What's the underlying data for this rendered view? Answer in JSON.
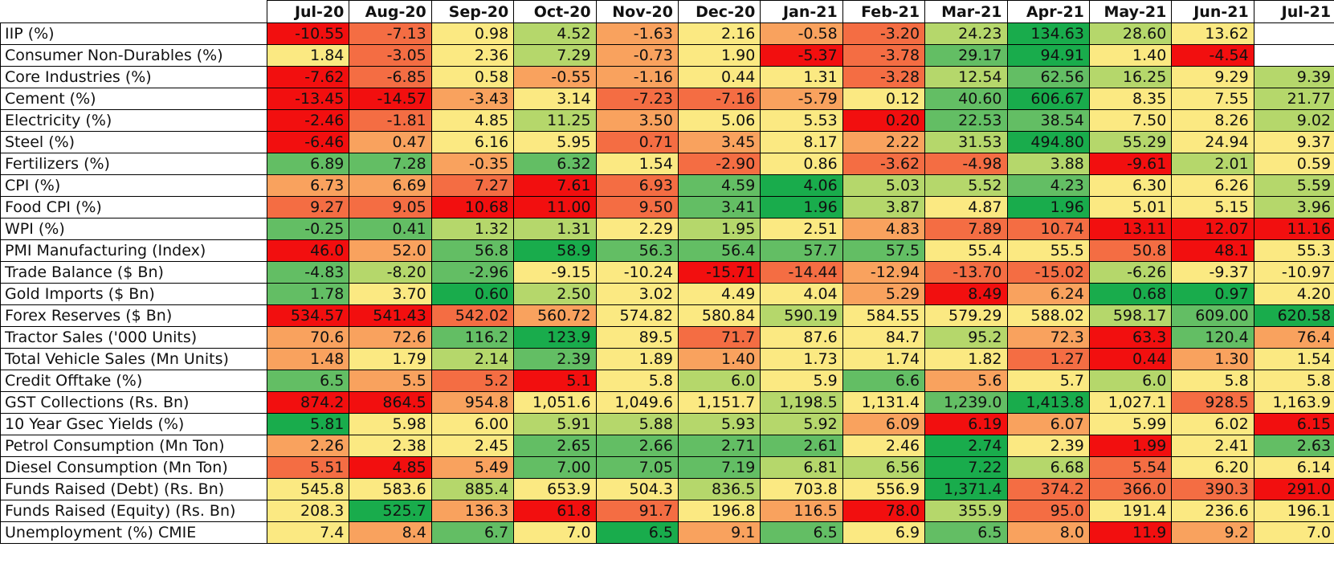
{
  "colors": {
    "dark_green": "#19ac4c",
    "green": "#63be64",
    "light_green": "#b5d76b",
    "yellow": "#fbe982",
    "orange": "#f9a25e",
    "red_orange": "#f46d43",
    "red": "#f20f0f"
  },
  "columns": [
    "Jul-20",
    "Aug-20",
    "Sep-20",
    "Oct-20",
    "Nov-20",
    "Dec-20",
    "Jan-21",
    "Feb-21",
    "Mar-21",
    "Apr-21",
    "May-21",
    "Jun-21",
    "Jul-21"
  ],
  "rows": [
    {
      "label": "IIP (%)",
      "values": [
        "-10.55",
        "-7.13",
        "0.98",
        "4.52",
        "-1.63",
        "2.16",
        "-0.58",
        "-3.20",
        "24.23",
        "134.63",
        "28.60",
        "13.62",
        ""
      ],
      "colors": [
        "red",
        "red_orange",
        "yellow",
        "light_green",
        "orange",
        "yellow",
        "orange",
        "red_orange",
        "light_green",
        "dark_green",
        "light_green",
        "yellow",
        "none"
      ]
    },
    {
      "label": "Consumer Non-Durables (%)",
      "values": [
        "1.84",
        "-3.05",
        "2.36",
        "7.29",
        "-0.73",
        "1.90",
        "-5.37",
        "-3.78",
        "29.17",
        "94.91",
        "1.40",
        "-4.54",
        ""
      ],
      "colors": [
        "yellow",
        "red_orange",
        "yellow",
        "light_green",
        "orange",
        "yellow",
        "red",
        "red_orange",
        "green",
        "dark_green",
        "yellow",
        "red",
        "none"
      ]
    },
    {
      "label": "Core Industries (%)",
      "values": [
        "-7.62",
        "-6.85",
        "0.58",
        "-0.55",
        "-1.16",
        "0.44",
        "1.31",
        "-3.28",
        "12.54",
        "62.56",
        "16.25",
        "9.29",
        "9.39"
      ],
      "colors": [
        "red",
        "red_orange",
        "yellow",
        "orange",
        "orange",
        "yellow",
        "yellow",
        "red_orange",
        "light_green",
        "green",
        "light_green",
        "yellow",
        "light_green"
      ]
    },
    {
      "label": "Cement (%)",
      "values": [
        "-13.45",
        "-14.57",
        "-3.43",
        "3.14",
        "-7.23",
        "-7.16",
        "-5.79",
        "0.12",
        "40.60",
        "606.67",
        "8.35",
        "7.55",
        "21.77"
      ],
      "colors": [
        "red",
        "red",
        "orange",
        "yellow",
        "red_orange",
        "red_orange",
        "orange",
        "yellow",
        "green",
        "dark_green",
        "yellow",
        "yellow",
        "light_green"
      ]
    },
    {
      "label": "Electricity (%)",
      "values": [
        "-2.46",
        "-1.81",
        "4.85",
        "11.25",
        "3.50",
        "5.06",
        "5.53",
        "0.20",
        "22.53",
        "38.54",
        "7.50",
        "8.26",
        "9.02"
      ],
      "colors": [
        "red",
        "red_orange",
        "yellow",
        "light_green",
        "orange",
        "yellow",
        "yellow",
        "red",
        "green",
        "green",
        "yellow",
        "yellow",
        "light_green"
      ]
    },
    {
      "label": "Steel (%)",
      "values": [
        "-6.46",
        "0.47",
        "6.16",
        "5.95",
        "0.71",
        "3.45",
        "8.17",
        "2.22",
        "31.53",
        "494.80",
        "55.29",
        "24.94",
        "9.37"
      ],
      "colors": [
        "red",
        "orange",
        "yellow",
        "yellow",
        "red_orange",
        "orange",
        "yellow",
        "orange",
        "light_green",
        "dark_green",
        "light_green",
        "yellow",
        "yellow"
      ]
    },
    {
      "label": "Fertilizers (%)",
      "values": [
        "6.89",
        "7.28",
        "-0.35",
        "6.32",
        "1.54",
        "-2.90",
        "0.86",
        "-3.62",
        "-4.98",
        "3.88",
        "-9.61",
        "2.01",
        "0.59"
      ],
      "colors": [
        "green",
        "green",
        "orange",
        "green",
        "yellow",
        "red_orange",
        "yellow",
        "red_orange",
        "red_orange",
        "light_green",
        "red",
        "light_green",
        "yellow"
      ]
    },
    {
      "label": "CPI (%)",
      "values": [
        "6.73",
        "6.69",
        "7.27",
        "7.61",
        "6.93",
        "4.59",
        "4.06",
        "5.03",
        "5.52",
        "4.23",
        "6.30",
        "6.26",
        "5.59"
      ],
      "colors": [
        "orange",
        "orange",
        "red_orange",
        "red",
        "red_orange",
        "green",
        "dark_green",
        "light_green",
        "light_green",
        "green",
        "yellow",
        "yellow",
        "light_green"
      ]
    },
    {
      "label": "Food CPI (%)",
      "values": [
        "9.27",
        "9.05",
        "10.68",
        "11.00",
        "9.50",
        "3.41",
        "1.96",
        "3.87",
        "4.87",
        "1.96",
        "5.01",
        "5.15",
        "3.96"
      ],
      "colors": [
        "red_orange",
        "red_orange",
        "red",
        "red",
        "red_orange",
        "green",
        "dark_green",
        "light_green",
        "yellow",
        "dark_green",
        "yellow",
        "yellow",
        "light_green"
      ]
    },
    {
      "label": "WPI (%)",
      "values": [
        "-0.25",
        "0.41",
        "1.32",
        "1.31",
        "2.29",
        "1.95",
        "2.51",
        "4.83",
        "7.89",
        "10.74",
        "13.11",
        "12.07",
        "11.16"
      ],
      "colors": [
        "green",
        "green",
        "light_green",
        "light_green",
        "yellow",
        "light_green",
        "yellow",
        "orange",
        "red_orange",
        "red_orange",
        "red",
        "red",
        "red"
      ]
    },
    {
      "label": "PMI Manufacturing (Index)",
      "values": [
        "46.0",
        "52.0",
        "56.8",
        "58.9",
        "56.3",
        "56.4",
        "57.7",
        "57.5",
        "55.4",
        "55.5",
        "50.8",
        "48.1",
        "55.3"
      ],
      "colors": [
        "red",
        "orange",
        "green",
        "dark_green",
        "green",
        "green",
        "green",
        "green",
        "yellow",
        "yellow",
        "red_orange",
        "red",
        "yellow"
      ]
    },
    {
      "label": "Trade Balance ($ Bn)",
      "values": [
        "-4.83",
        "-8.20",
        "-2.96",
        "-9.15",
        "-10.24",
        "-15.71",
        "-14.44",
        "-12.94",
        "-13.70",
        "-15.02",
        "-6.26",
        "-9.37",
        "-10.97"
      ],
      "colors": [
        "green",
        "light_green",
        "green",
        "yellow",
        "yellow",
        "red",
        "red_orange",
        "orange",
        "red_orange",
        "red_orange",
        "light_green",
        "yellow",
        "yellow"
      ]
    },
    {
      "label": "Gold Imports ($ Bn)",
      "values": [
        "1.78",
        "3.70",
        "0.60",
        "2.50",
        "3.02",
        "4.49",
        "4.04",
        "5.29",
        "8.49",
        "6.24",
        "0.68",
        "0.97",
        "4.20"
      ],
      "colors": [
        "green",
        "yellow",
        "dark_green",
        "light_green",
        "yellow",
        "yellow",
        "yellow",
        "orange",
        "red",
        "orange",
        "dark_green",
        "dark_green",
        "yellow"
      ]
    },
    {
      "label": "Forex Reserves ($ Bn)",
      "values": [
        "534.57",
        "541.43",
        "542.02",
        "560.72",
        "574.82",
        "580.84",
        "590.19",
        "584.55",
        "579.29",
        "588.02",
        "598.17",
        "609.00",
        "620.58"
      ],
      "colors": [
        "red",
        "red",
        "red_orange",
        "orange",
        "yellow",
        "yellow",
        "light_green",
        "yellow",
        "yellow",
        "yellow",
        "light_green",
        "green",
        "dark_green"
      ]
    },
    {
      "label": "Tractor Sales ('000 Units)",
      "values": [
        "70.6",
        "72.6",
        "116.2",
        "123.9",
        "89.5",
        "71.7",
        "87.6",
        "84.7",
        "95.2",
        "72.3",
        "63.3",
        "120.4",
        "76.4"
      ],
      "colors": [
        "orange",
        "orange",
        "green",
        "dark_green",
        "yellow",
        "red_orange",
        "yellow",
        "yellow",
        "light_green",
        "orange",
        "red",
        "green",
        "orange"
      ]
    },
    {
      "label": "Total Vehicle Sales (Mn Units)",
      "values": [
        "1.48",
        "1.79",
        "2.14",
        "2.39",
        "1.89",
        "1.40",
        "1.73",
        "1.74",
        "1.82",
        "1.27",
        "0.44",
        "1.30",
        "1.54"
      ],
      "colors": [
        "orange",
        "yellow",
        "light_green",
        "green",
        "yellow",
        "orange",
        "yellow",
        "yellow",
        "yellow",
        "red_orange",
        "red",
        "orange",
        "yellow"
      ]
    },
    {
      "label": "Credit Offtake (%)",
      "values": [
        "6.5",
        "5.5",
        "5.2",
        "5.1",
        "5.8",
        "6.0",
        "5.9",
        "6.6",
        "5.6",
        "5.7",
        "6.0",
        "5.8",
        "5.8"
      ],
      "colors": [
        "green",
        "orange",
        "red_orange",
        "red",
        "yellow",
        "light_green",
        "yellow",
        "green",
        "orange",
        "yellow",
        "light_green",
        "yellow",
        "yellow"
      ]
    },
    {
      "label": "GST Collections (Rs. Bn)",
      "values": [
        "874.2",
        "864.5",
        "954.8",
        "1,051.6",
        "1,049.6",
        "1,151.7",
        "1,198.5",
        "1,131.4",
        "1,239.0",
        "1,413.8",
        "1,027.1",
        "928.5",
        "1,163.9"
      ],
      "colors": [
        "red",
        "red",
        "orange",
        "yellow",
        "yellow",
        "yellow",
        "light_green",
        "yellow",
        "green",
        "dark_green",
        "yellow",
        "red_orange",
        "yellow"
      ]
    },
    {
      "label": "10 Year Gsec Yields (%)",
      "values": [
        "5.81",
        "5.98",
        "6.00",
        "5.91",
        "5.88",
        "5.93",
        "5.92",
        "6.09",
        "6.19",
        "6.07",
        "5.99",
        "6.02",
        "6.15"
      ],
      "colors": [
        "dark_green",
        "yellow",
        "yellow",
        "light_green",
        "light_green",
        "light_green",
        "light_green",
        "orange",
        "red",
        "orange",
        "yellow",
        "yellow",
        "red"
      ]
    },
    {
      "label": "Petrol Consumption (Mn Ton)",
      "values": [
        "2.26",
        "2.38",
        "2.45",
        "2.65",
        "2.66",
        "2.71",
        "2.61",
        "2.46",
        "2.74",
        "2.39",
        "1.99",
        "2.41",
        "2.63"
      ],
      "colors": [
        "orange",
        "yellow",
        "yellow",
        "green",
        "green",
        "green",
        "green",
        "yellow",
        "dark_green",
        "yellow",
        "red",
        "yellow",
        "green"
      ]
    },
    {
      "label": "Diesel Consumption (Mn Ton)",
      "values": [
        "5.51",
        "4.85",
        "5.49",
        "7.00",
        "7.05",
        "7.19",
        "6.81",
        "6.56",
        "7.22",
        "6.68",
        "5.54",
        "6.20",
        "6.14"
      ],
      "colors": [
        "red_orange",
        "red",
        "orange",
        "green",
        "green",
        "green",
        "light_green",
        "light_green",
        "dark_green",
        "light_green",
        "red_orange",
        "yellow",
        "yellow"
      ]
    },
    {
      "label": "Funds Raised (Debt) (Rs. Bn)",
      "values": [
        "545.8",
        "583.6",
        "885.4",
        "653.9",
        "504.3",
        "836.5",
        "703.8",
        "556.9",
        "1,371.4",
        "374.2",
        "366.0",
        "390.3",
        "291.0"
      ],
      "colors": [
        "yellow",
        "yellow",
        "light_green",
        "yellow",
        "yellow",
        "light_green",
        "yellow",
        "yellow",
        "dark_green",
        "red_orange",
        "red_orange",
        "red_orange",
        "red"
      ]
    },
    {
      "label": "Funds Raised (Equity) (Rs. Bn)",
      "values": [
        "208.3",
        "525.7",
        "136.3",
        "61.8",
        "91.7",
        "196.8",
        "116.5",
        "78.0",
        "355.9",
        "95.0",
        "191.4",
        "236.6",
        "196.1"
      ],
      "colors": [
        "yellow",
        "dark_green",
        "orange",
        "red",
        "red_orange",
        "yellow",
        "orange",
        "red",
        "light_green",
        "red_orange",
        "yellow",
        "yellow",
        "yellow"
      ]
    },
    {
      "label": "Unemployment (%) CMIE",
      "values": [
        "7.4",
        "8.4",
        "6.7",
        "7.0",
        "6.5",
        "9.1",
        "6.5",
        "6.9",
        "6.5",
        "8.0",
        "11.9",
        "9.2",
        "7.0"
      ],
      "colors": [
        "yellow",
        "orange",
        "green",
        "yellow",
        "dark_green",
        "orange",
        "green",
        "yellow",
        "green",
        "orange",
        "red",
        "orange",
        "yellow"
      ]
    }
  ]
}
